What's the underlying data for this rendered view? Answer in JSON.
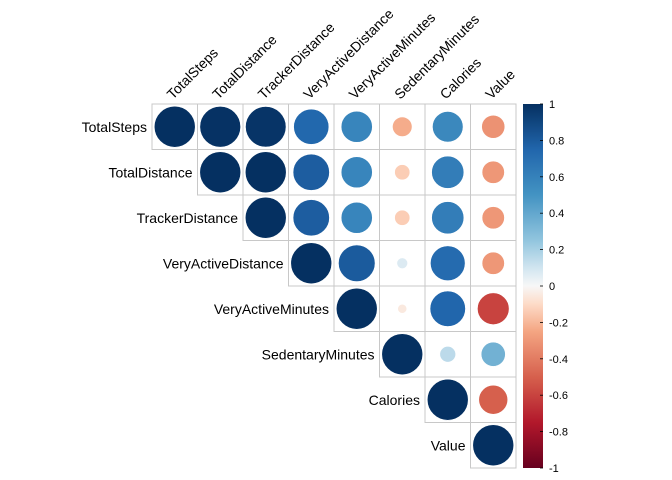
{
  "chart_data": {
    "type": "heatmap",
    "subtype": "upper-triangle correlation matrix drawn with circles",
    "variables": [
      "TotalSteps",
      "TotalDistance",
      "TrackerDistance",
      "VeryActiveDistance",
      "VeryActiveMinutes",
      "SedentaryMinutes",
      "Calories",
      "Value"
    ],
    "matrix": [
      [
        1.0,
        0.99,
        0.98,
        0.74,
        0.58,
        -0.23,
        0.56,
        -0.32
      ],
      [
        null,
        1.0,
        1.0,
        0.79,
        0.58,
        -0.14,
        0.62,
        -0.3
      ],
      [
        null,
        null,
        1.0,
        0.79,
        0.58,
        -0.14,
        0.62,
        -0.3
      ],
      [
        null,
        null,
        null,
        1.0,
        0.8,
        0.07,
        0.72,
        -0.3
      ],
      [
        null,
        null,
        null,
        null,
        1.0,
        -0.05,
        0.75,
        -0.6
      ],
      [
        null,
        null,
        null,
        null,
        null,
        1.0,
        0.15,
        0.35
      ],
      [
        null,
        null,
        null,
        null,
        null,
        null,
        1.0,
        -0.5
      ],
      [
        null,
        null,
        null,
        null,
        null,
        null,
        null,
        1.0
      ]
    ],
    "colorbar": {
      "range": [
        -1,
        1
      ],
      "ticks": [
        "1",
        "0.8",
        "0.6",
        "0.4",
        "0.2",
        "0",
        "-0.2",
        "-0.4",
        "-0.6",
        "-0.8",
        "-1"
      ],
      "low_color": "#67001F",
      "mid_color": "#F7F7F7",
      "high_color": "#053061"
    },
    "legend": "right"
  }
}
